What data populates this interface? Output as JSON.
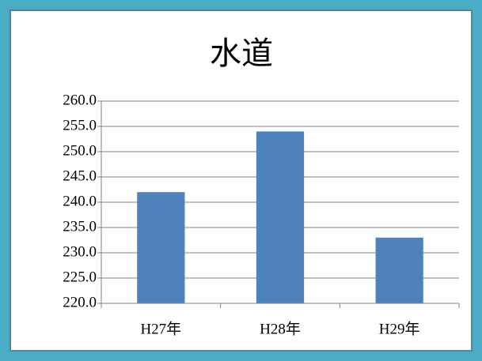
{
  "chart_data": {
    "type": "bar",
    "title": "水道",
    "categories": [
      "H27年",
      "H28年",
      "H29年"
    ],
    "values": [
      242,
      254,
      233
    ],
    "color": "#4f81bd",
    "ylim": [
      220,
      260
    ],
    "yticks": [
      {
        "value": 220,
        "label": "220.0"
      },
      {
        "value": 225,
        "label": "225.0"
      },
      {
        "value": 230,
        "label": "230.0"
      },
      {
        "value": 235,
        "label": "235.0"
      },
      {
        "value": 240,
        "label": "240.0"
      },
      {
        "value": 245,
        "label": "245.0"
      },
      {
        "value": 250,
        "label": "250.0"
      },
      {
        "value": 255,
        "label": "255.0"
      },
      {
        "value": 260,
        "label": "260.0"
      }
    ],
    "grid": true
  }
}
